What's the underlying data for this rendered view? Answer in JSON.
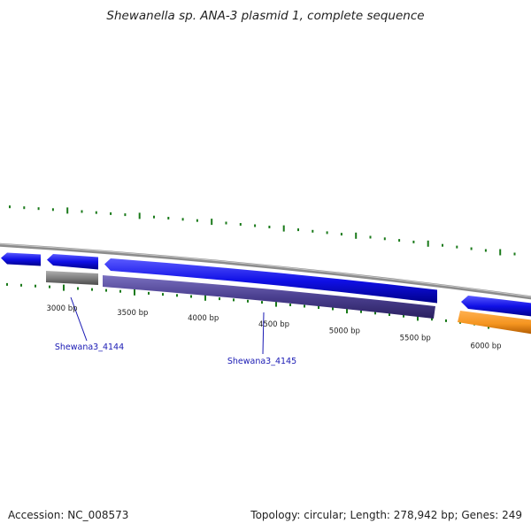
{
  "title": "Shewanella sp. ANA-3 plasmid 1, complete sequence",
  "footer": {
    "accession": "Accession: NC_008573",
    "summary": "Topology: circular; Length: 278,942 bp; Genes: 249"
  },
  "colors": {
    "backbone": "#8c8c8c",
    "forward_gene": "#1a1ae6",
    "reverse_gene": "#4a3f8f",
    "grey_feature": "#808080",
    "orange_feature": "#f59520",
    "tick_green": "#1a7a1a",
    "gene_label": "#1a1ab4"
  },
  "scale_labels": [
    {
      "text": "3000 bp",
      "bp": 3000
    },
    {
      "text": "3500 bp",
      "bp": 3500
    },
    {
      "text": "4000 bp",
      "bp": 4000
    },
    {
      "text": "4500 bp",
      "bp": 4500
    },
    {
      "text": "5000 bp",
      "bp": 5000
    },
    {
      "text": "5500 bp",
      "bp": 5500
    },
    {
      "text": "6000 bp",
      "bp": 6000
    }
  ],
  "gene_labels": [
    {
      "text": "Shewana3_4144"
    },
    {
      "text": "Shewana3_4145"
    }
  ]
}
